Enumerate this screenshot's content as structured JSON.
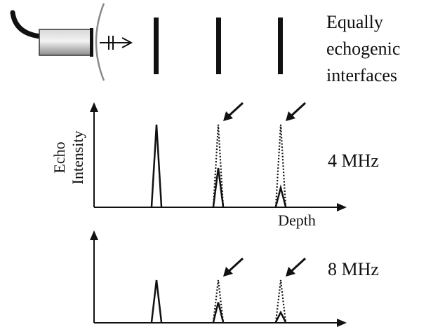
{
  "header": {
    "caption_lines": [
      "Equally",
      "echogenic",
      "interfaces"
    ]
  },
  "plot_top": {
    "ylabel_line1": "Echo",
    "ylabel_line2": "Intensity",
    "xlabel": "Depth",
    "frequency_label": "4 MHz",
    "peaks": [
      {
        "solid_level": 1.0,
        "dotted_level": null
      },
      {
        "solid_level": 0.47,
        "dotted_level": 1.0
      },
      {
        "solid_level": 0.23,
        "dotted_level": 1.0
      }
    ]
  },
  "plot_bottom": {
    "frequency_label": "8 MHz",
    "peaks": [
      {
        "solid_level": 1.0,
        "dotted_level": null
      },
      {
        "solid_level": 0.47,
        "dotted_level": 1.0
      },
      {
        "solid_level": 0.23,
        "dotted_level": 1.0
      }
    ]
  },
  "colors": {
    "ink": "#111111",
    "probe_gray": "#a8a8a8",
    "arc_gray": "#8a8a8a"
  }
}
